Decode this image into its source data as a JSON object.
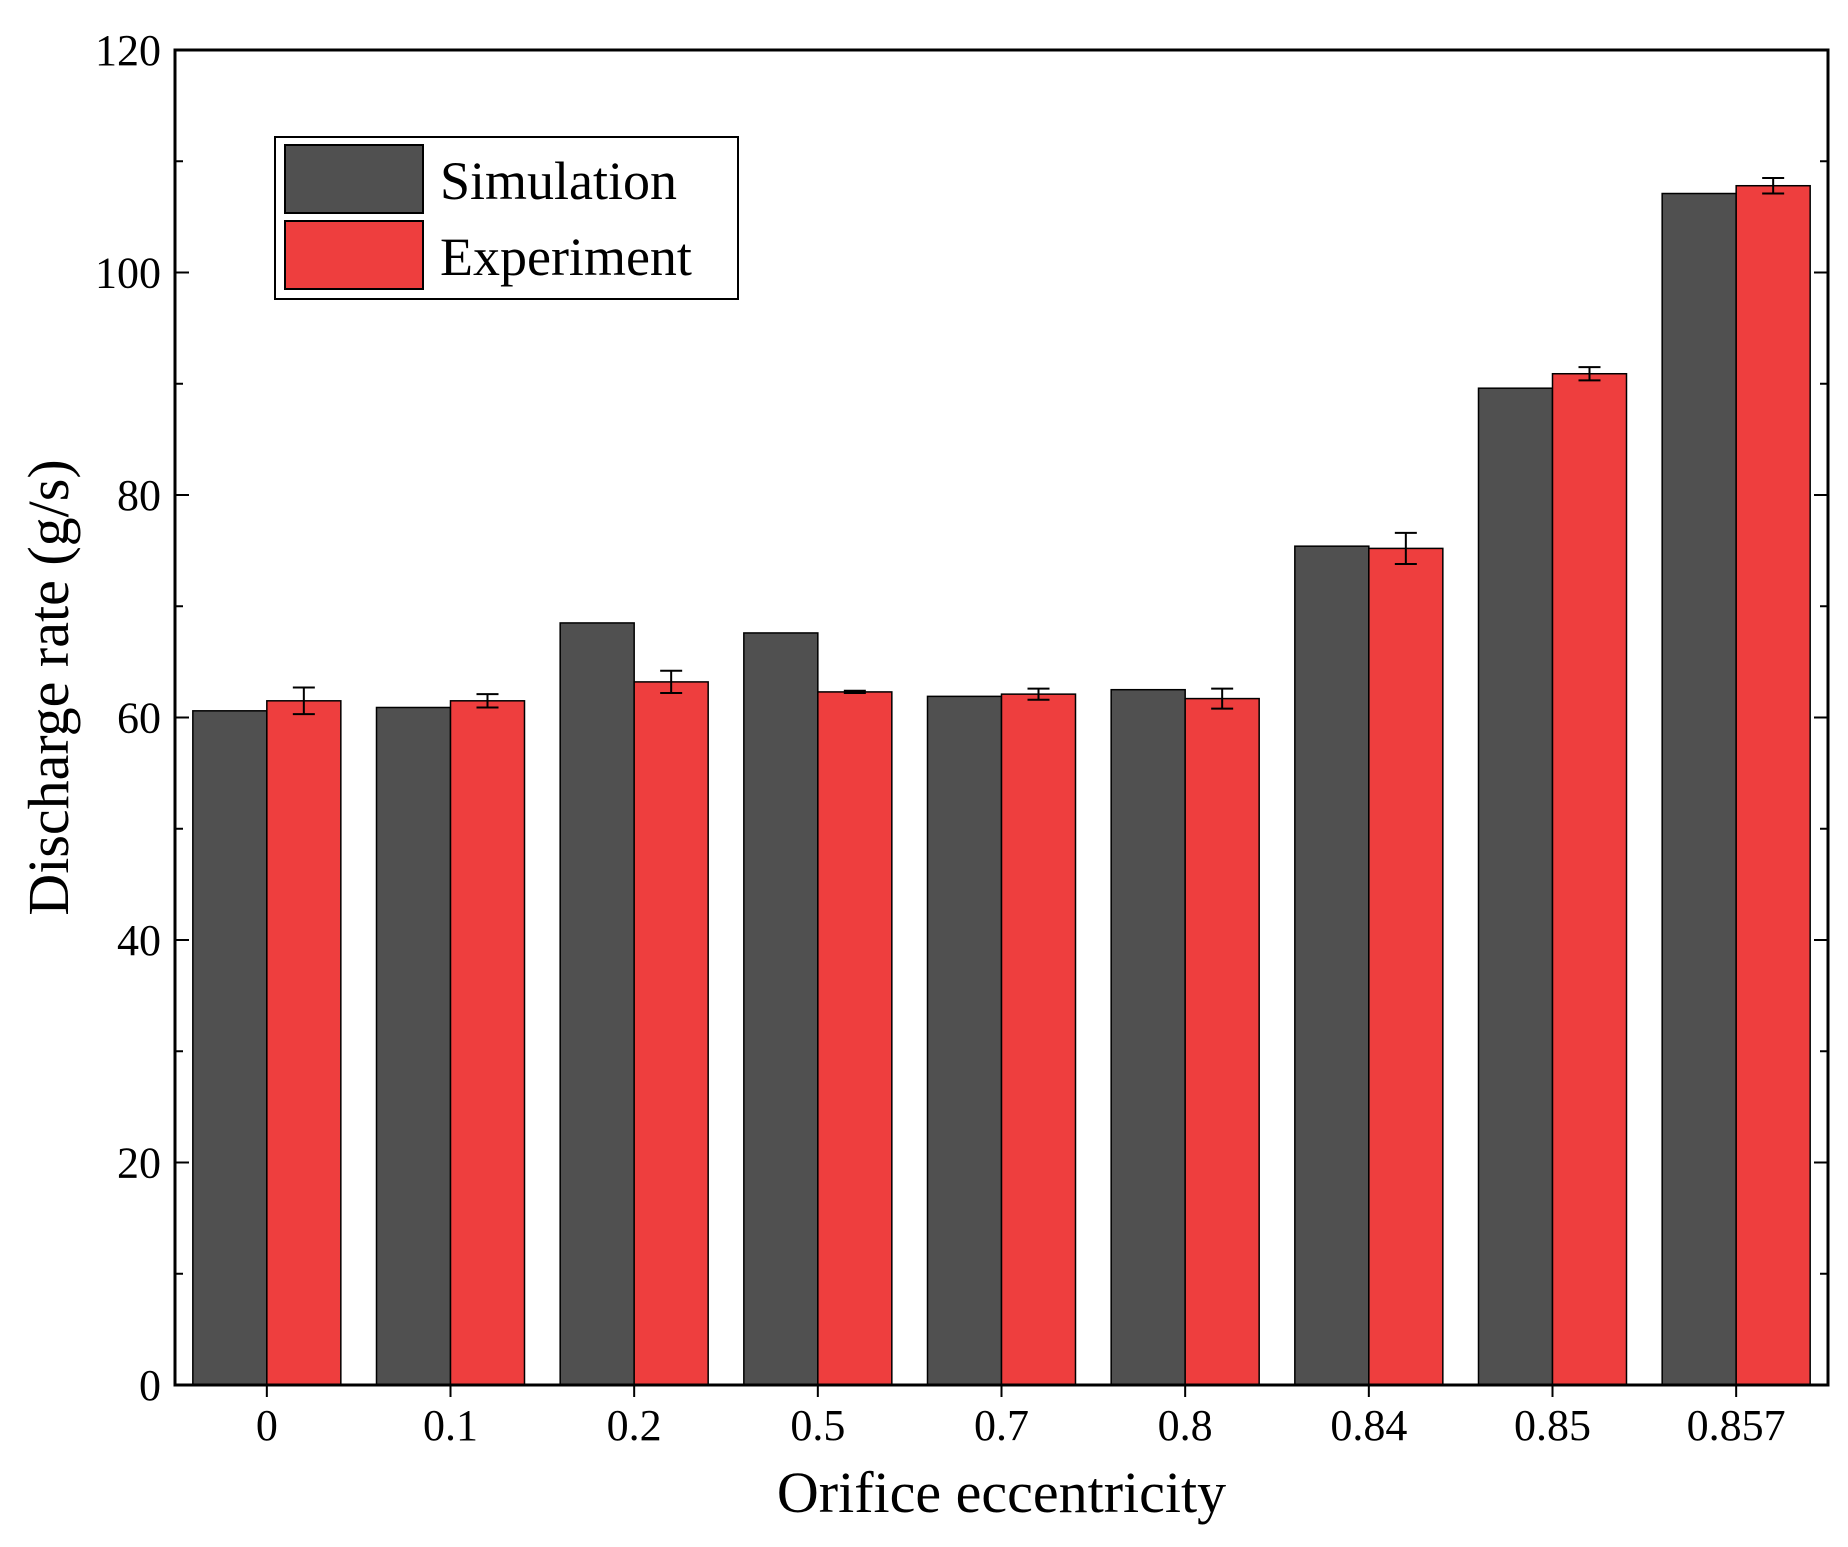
{
  "chart_data": {
    "type": "bar",
    "xlabel": "Orifice eccentricity",
    "ylabel": "Discharge rate (g/s)",
    "categories": [
      "0",
      "0.1",
      "0.2",
      "0.5",
      "0.7",
      "0.8",
      "0.84",
      "0.85",
      "0.857"
    ],
    "ylim": [
      0,
      120
    ],
    "yticks": [
      0,
      20,
      40,
      60,
      80,
      100,
      120
    ],
    "series": [
      {
        "name": "Simulation",
        "color": "#505050",
        "values": [
          60.6,
          60.9,
          68.5,
          67.6,
          61.9,
          62.5,
          75.4,
          89.6,
          107.1
        ],
        "errors": null
      },
      {
        "name": "Experiment",
        "color": "#ee3e3e",
        "values": [
          61.5,
          61.5,
          63.2,
          62.3,
          62.1,
          61.7,
          75.2,
          90.9,
          107.8
        ],
        "errors": [
          1.2,
          0.6,
          1.0,
          0.1,
          0.5,
          0.9,
          1.4,
          0.6,
          0.7
        ]
      }
    ],
    "legend": {
      "position": "top-left"
    },
    "grid": false
  }
}
